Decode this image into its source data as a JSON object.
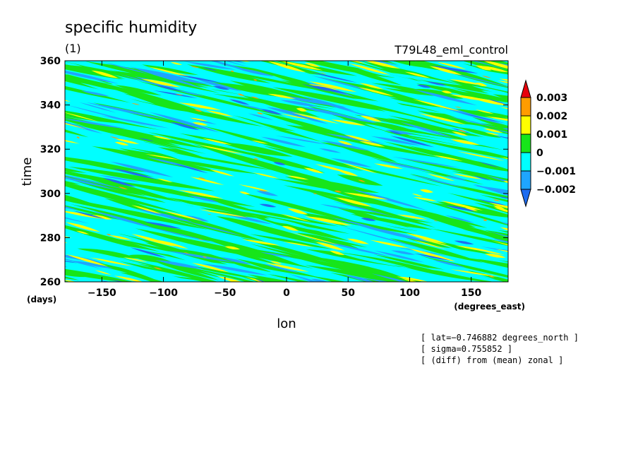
{
  "chart_data": {
    "type": "heatmap",
    "title": "specific humidity",
    "subtitle": "(1)",
    "experiment": "T79L48_eml_control",
    "xlabel": "lon",
    "xunit": "(degrees_east)",
    "ylabel": "time",
    "yunit": "(days)",
    "xlim": [
      -180,
      180
    ],
    "ylim": [
      260,
      360
    ],
    "xticks": [
      -150,
      -100,
      -50,
      0,
      50,
      100,
      150
    ],
    "yticks": [
      260,
      280,
      300,
      320,
      340,
      360
    ],
    "xtick_labels": [
      "−150",
      "−100",
      "−50",
      "0",
      "50",
      "100",
      "150"
    ],
    "ytick_labels": [
      "260",
      "280",
      "300",
      "320",
      "340",
      "360"
    ],
    "colorbar": {
      "levels": [
        -0.002,
        -0.001,
        0,
        0.001,
        0.002,
        0.003
      ],
      "labels": [
        "−0.002",
        "−0.001",
        "0",
        "0.001",
        "0.002",
        "0.003"
      ],
      "colors": [
        "#1e6cf0",
        "#1fa5ff",
        "#00ffff",
        "#17e51a",
        "#ffff00",
        "#ff9c00",
        "#e8000b"
      ]
    },
    "annotations": [
      "[ lat=−0.746882 degrees_north ]",
      "[ sigma=0.755852 ]",
      "[ (diff) from (mean) zonal ]"
    ],
    "pattern": "eastward-drifting diagonal anomaly streaks"
  }
}
